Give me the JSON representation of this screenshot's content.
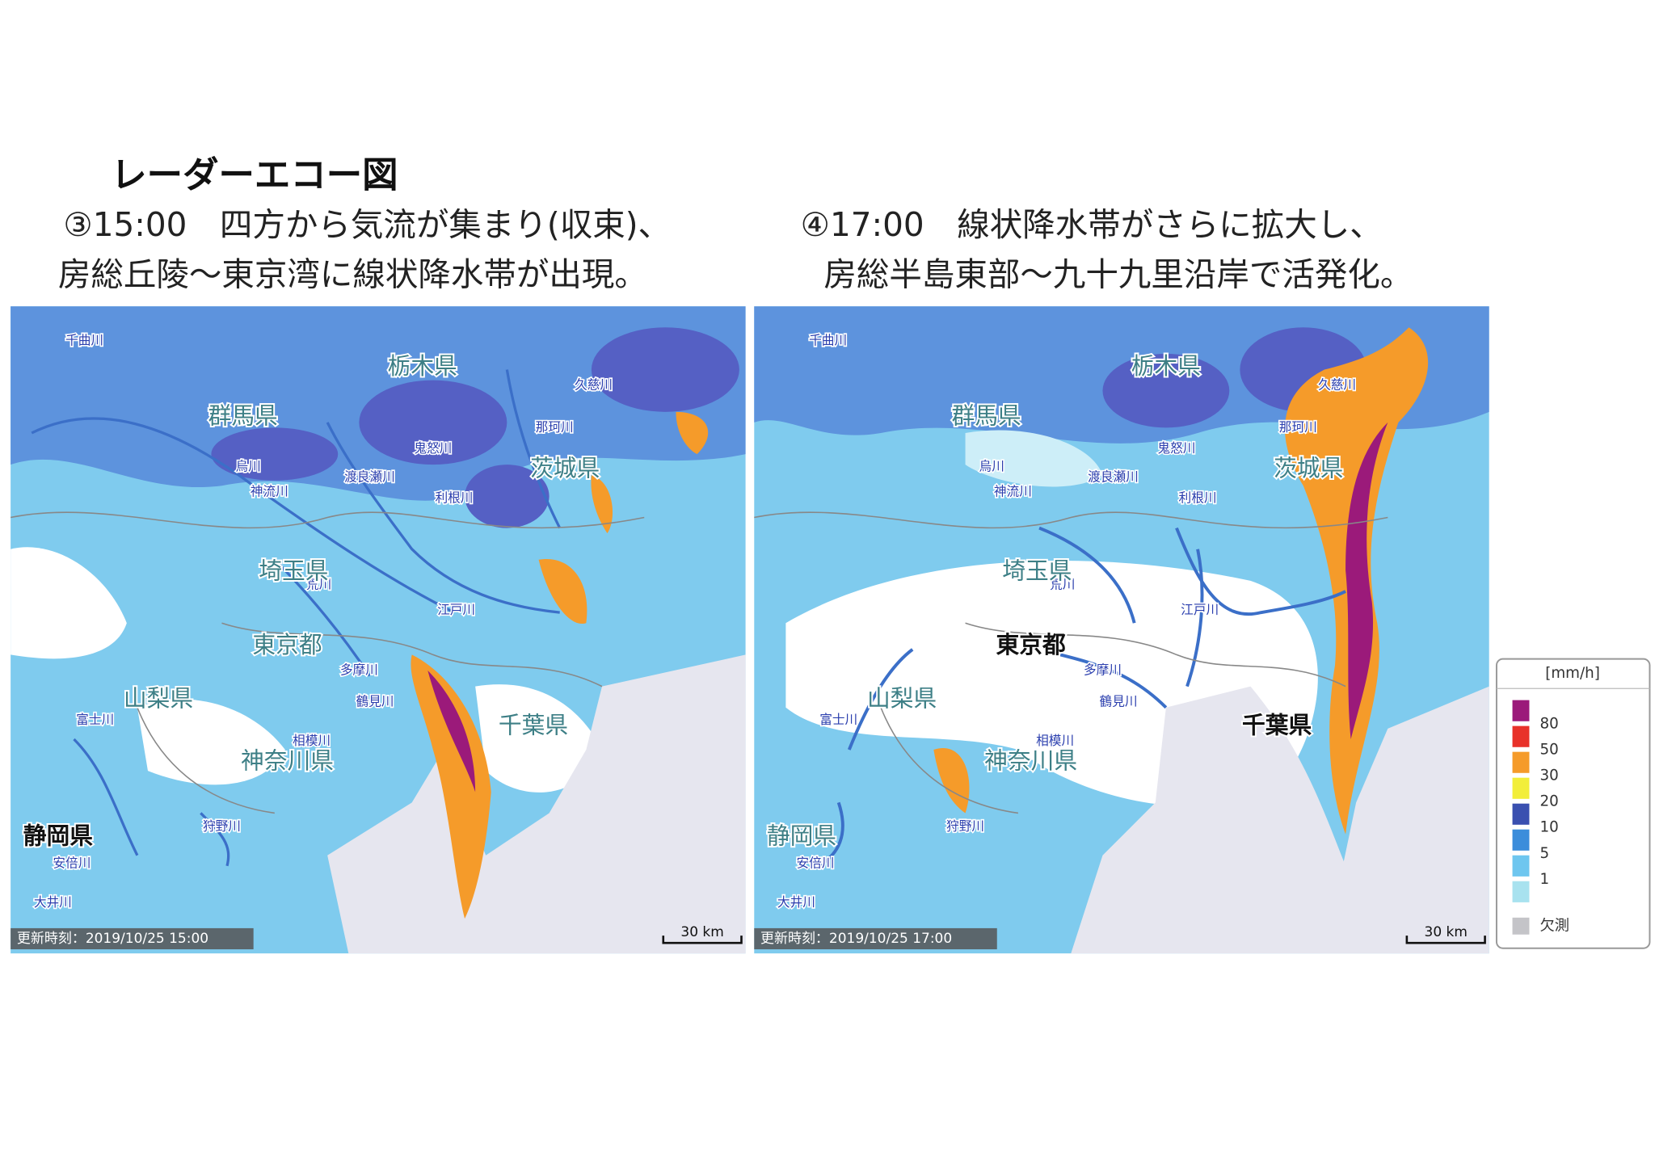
{
  "title": "レーダーエコー図",
  "maps": [
    {
      "caption_lines": [
        "③15:00　四方から気流が集まり(収束)、",
        "房総丘陵〜東京湾に線状降水帯が出現。"
      ],
      "prefectures": [
        "栃木県",
        "群馬県",
        "茨城県",
        "埼玉県",
        "東京都",
        "山梨県",
        "千葉県",
        "神奈川県",
        "静岡県"
      ],
      "rivers": [
        "千曲川",
        "久慈川",
        "那珂川",
        "鬼怒川",
        "烏川",
        "神流川",
        "渡良瀬川",
        "利根川",
        "荒川",
        "江戸川",
        "多摩川",
        "鶴見川",
        "相模川",
        "富士川",
        "狩野川",
        "安倍川",
        "大井川"
      ],
      "timestamp": "更新時刻：2019/10/25 15:00",
      "scale": "30 km"
    },
    {
      "caption_lines": [
        "④17:00　線状降水帯がさらに拡大し、",
        "房総半島東部〜九十九里沿岸で活発化。"
      ],
      "prefectures": [
        "栃木県",
        "群馬県",
        "茨城県",
        "埼玉県",
        "東京都",
        "山梨県",
        "千葉県",
        "神奈川県",
        "静岡県"
      ],
      "rivers": [
        "千曲川",
        "久慈川",
        "那珂川",
        "鬼怒川",
        "烏川",
        "神流川",
        "渡良瀬川",
        "利根川",
        "荒川",
        "江戸川",
        "多摩川",
        "鶴見川",
        "相模川",
        "富士川",
        "狩野川",
        "安倍川",
        "大井川"
      ],
      "timestamp": "更新時刻：2019/10/25 17:00",
      "scale": "30 km"
    }
  ],
  "legend": {
    "title": "[mm/h]",
    "colors": [
      "#9b1a7a",
      "#e8322a",
      "#f59b2a",
      "#f2ee3a",
      "#3a50b0",
      "#3c8ddb",
      "#6ec6ef",
      "#a8e2ef"
    ],
    "labels": [
      "80",
      "50",
      "30",
      "20",
      "10",
      "5",
      "1"
    ],
    "missing_color": "#c4c4c8",
    "missing_label": "欠測"
  }
}
